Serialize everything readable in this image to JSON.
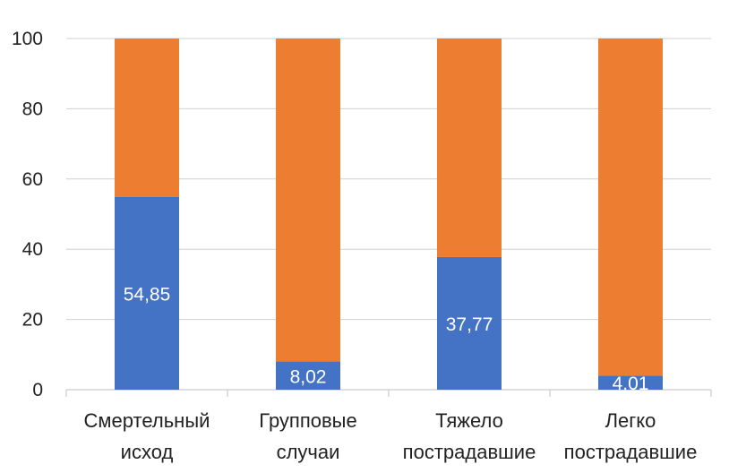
{
  "chart_data": {
    "type": "bar",
    "stacked": true,
    "categories": [
      [
        "Смертельный",
        "исход"
      ],
      [
        "Групповые",
        "случаи"
      ],
      [
        "Тяжело",
        "пострадавшие"
      ],
      [
        "Легко",
        "пострадавшие"
      ]
    ],
    "series": [
      {
        "name": "series-1",
        "color": "#4472C4",
        "values": [
          54.85,
          8.02,
          37.77,
          4.01
        ]
      },
      {
        "name": "series-2",
        "color": "#ED7D31",
        "values": [
          45.15,
          91.98,
          62.23,
          95.99
        ]
      }
    ],
    "data_labels": [
      "54,85",
      "8,02",
      "37,77",
      "4.01"
    ],
    "ylim": [
      0,
      100
    ],
    "yticks": [
      "0",
      "20",
      "40",
      "60",
      "80",
      "100"
    ],
    "grid": true,
    "title": "",
    "xlabel": "",
    "ylabel": ""
  }
}
